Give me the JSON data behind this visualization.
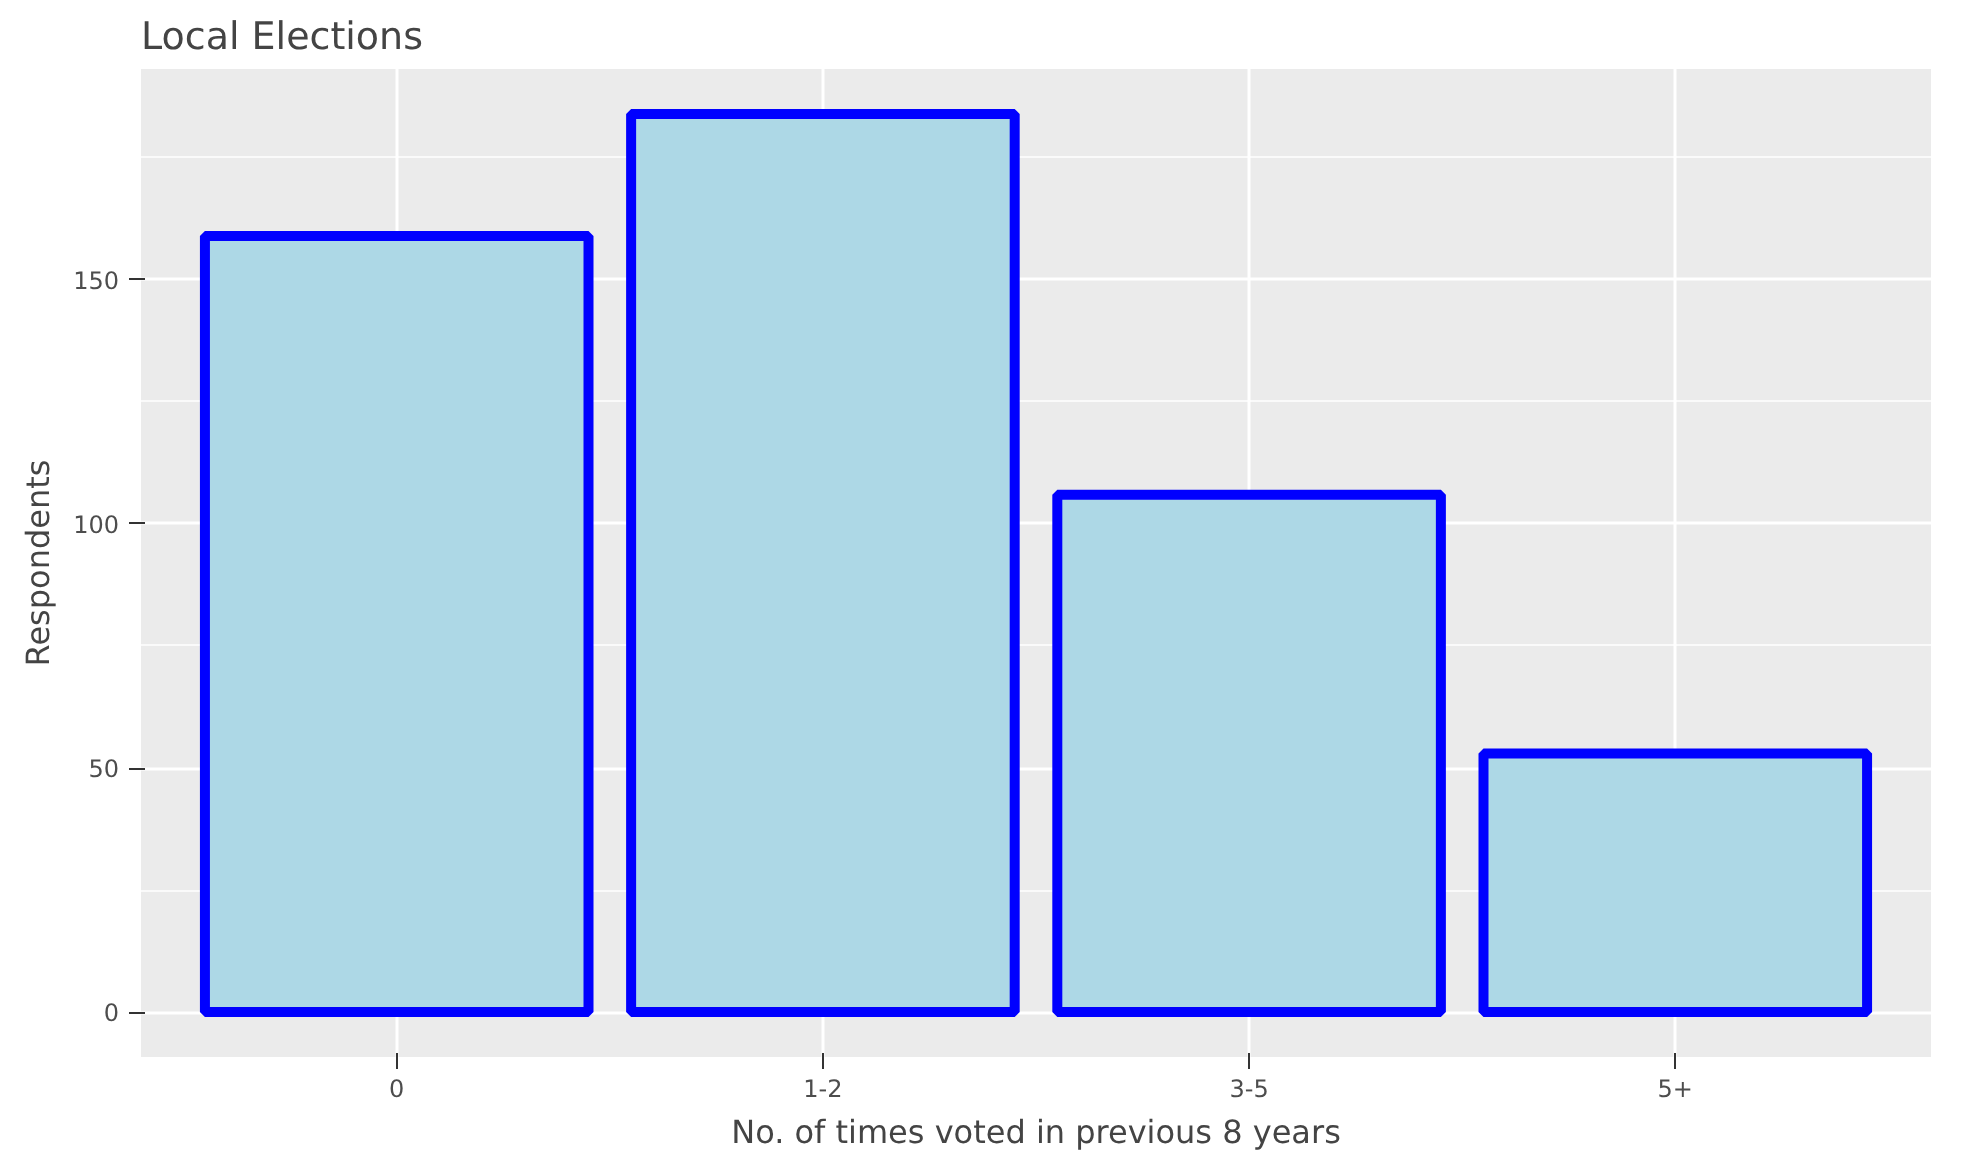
{
  "chart_data": {
    "type": "bar",
    "title": "Local Elections",
    "xlabel": "No. of times voted in previous 8 years",
    "ylabel": "Respondents",
    "categories": [
      "0",
      "1-2",
      "3-5",
      "5+"
    ],
    "series": [
      {
        "color": "#add8e6",
        "values": [
          159,
          184,
          106,
          53
        ]
      }
    ],
    "ylim": [
      -9.2,
      193.2
    ],
    "yticks": [
      0,
      50,
      100,
      150
    ],
    "grid": true
  }
}
